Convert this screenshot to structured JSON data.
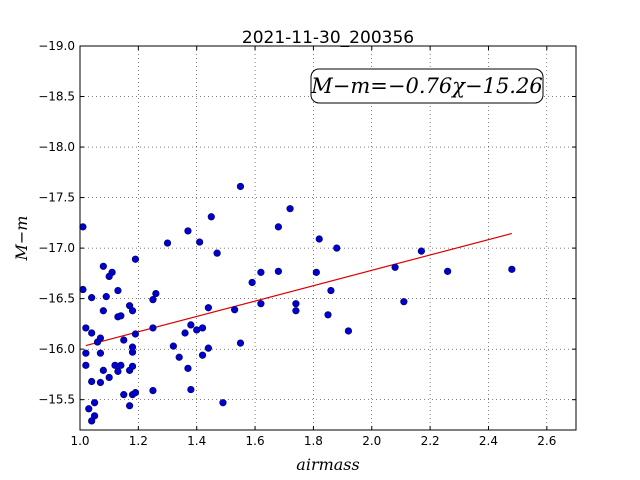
{
  "chart_data": {
    "type": "scatter",
    "title": "2021-11-30_200356",
    "xlabel": "airmass",
    "ylabel": "M−m",
    "xlim": [
      1.0,
      2.7
    ],
    "ylim": [
      -19.0,
      -15.2
    ],
    "y_inverted": true,
    "grid": true,
    "x_ticks": [
      1.0,
      1.2,
      1.4,
      1.6,
      1.8,
      2.0,
      2.2,
      2.4,
      2.6
    ],
    "x_tick_labels": [
      "1.0",
      "1.2",
      "1.4",
      "1.6",
      "1.8",
      "2.0",
      "2.2",
      "2.4",
      "2.6"
    ],
    "y_ticks": [
      -15.5,
      -16.0,
      -16.5,
      -17.0,
      -17.5,
      -18.0,
      -18.5,
      -19.0
    ],
    "y_tick_labels": [
      "−15.5",
      "−16.0",
      "−16.5",
      "−17.0",
      "−17.5",
      "−18.0",
      "−18.5",
      "−19.0"
    ],
    "annotation": "M−m=−0.76χ−15.26",
    "point_color": "#0000cc",
    "fit_color": "#dd0000",
    "fit": {
      "slope": -0.76,
      "intercept": -15.26,
      "x_range": [
        1.02,
        2.48
      ]
    },
    "points": [
      [
        1.04,
        -15.29
      ],
      [
        1.05,
        -15.34
      ],
      [
        1.03,
        -15.41
      ],
      [
        1.05,
        -15.47
      ],
      [
        1.04,
        -15.68
      ],
      [
        1.02,
        -15.84
      ],
      [
        1.02,
        -15.96
      ],
      [
        1.02,
        -16.21
      ],
      [
        1.04,
        -16.16
      ],
      [
        1.04,
        -16.51
      ],
      [
        1.01,
        -16.59
      ],
      [
        1.01,
        -17.21
      ],
      [
        1.07,
        -15.67
      ],
      [
        1.08,
        -15.79
      ],
      [
        1.07,
        -15.96
      ],
      [
        1.06,
        -16.07
      ],
      [
        1.07,
        -16.11
      ],
      [
        1.08,
        -16.38
      ],
      [
        1.09,
        -16.52
      ],
      [
        1.08,
        -16.82
      ],
      [
        1.1,
        -16.72
      ],
      [
        1.11,
        -16.76
      ],
      [
        1.1,
        -15.72
      ],
      [
        1.12,
        -15.84
      ],
      [
        1.13,
        -15.78
      ],
      [
        1.14,
        -15.84
      ],
      [
        1.15,
        -15.55
      ],
      [
        1.17,
        -15.44
      ],
      [
        1.18,
        -15.55
      ],
      [
        1.19,
        -15.57
      ],
      [
        1.17,
        -15.79
      ],
      [
        1.18,
        -15.83
      ],
      [
        1.18,
        -15.97
      ],
      [
        1.18,
        -16.02
      ],
      [
        1.19,
        -16.15
      ],
      [
        1.15,
        -16.09
      ],
      [
        1.13,
        -16.32
      ],
      [
        1.14,
        -16.33
      ],
      [
        1.17,
        -16.43
      ],
      [
        1.18,
        -16.38
      ],
      [
        1.13,
        -16.58
      ],
      [
        1.19,
        -16.89
      ],
      [
        1.25,
        -15.59
      ],
      [
        1.25,
        -16.21
      ],
      [
        1.25,
        -16.49
      ],
      [
        1.26,
        -16.55
      ],
      [
        1.3,
        -17.05
      ],
      [
        1.32,
        -16.03
      ],
      [
        1.34,
        -15.92
      ],
      [
        1.36,
        -16.16
      ],
      [
        1.37,
        -15.81
      ],
      [
        1.38,
        -15.6
      ],
      [
        1.38,
        -16.24
      ],
      [
        1.4,
        -16.19
      ],
      [
        1.42,
        -16.21
      ],
      [
        1.42,
        -15.94
      ],
      [
        1.44,
        -16.01
      ],
      [
        1.44,
        -16.41
      ],
      [
        1.41,
        -17.06
      ],
      [
        1.37,
        -17.17
      ],
      [
        1.45,
        -17.31
      ],
      [
        1.47,
        -16.95
      ],
      [
        1.49,
        -15.47
      ],
      [
        1.53,
        -16.39
      ],
      [
        1.55,
        -16.06
      ],
      [
        1.55,
        -17.61
      ],
      [
        1.59,
        -16.66
      ],
      [
        1.62,
        -16.45
      ],
      [
        1.62,
        -16.76
      ],
      [
        1.68,
        -16.77
      ],
      [
        1.68,
        -17.21
      ],
      [
        1.72,
        -17.39
      ],
      [
        1.74,
        -16.38
      ],
      [
        1.74,
        -16.45
      ],
      [
        1.81,
        -16.76
      ],
      [
        1.82,
        -17.09
      ],
      [
        1.85,
        -16.34
      ],
      [
        1.86,
        -16.58
      ],
      [
        1.88,
        -17.0
      ],
      [
        1.92,
        -16.18
      ],
      [
        2.08,
        -16.81
      ],
      [
        2.11,
        -16.47
      ],
      [
        2.17,
        -16.97
      ],
      [
        2.26,
        -16.77
      ],
      [
        2.48,
        -16.79
      ]
    ]
  }
}
